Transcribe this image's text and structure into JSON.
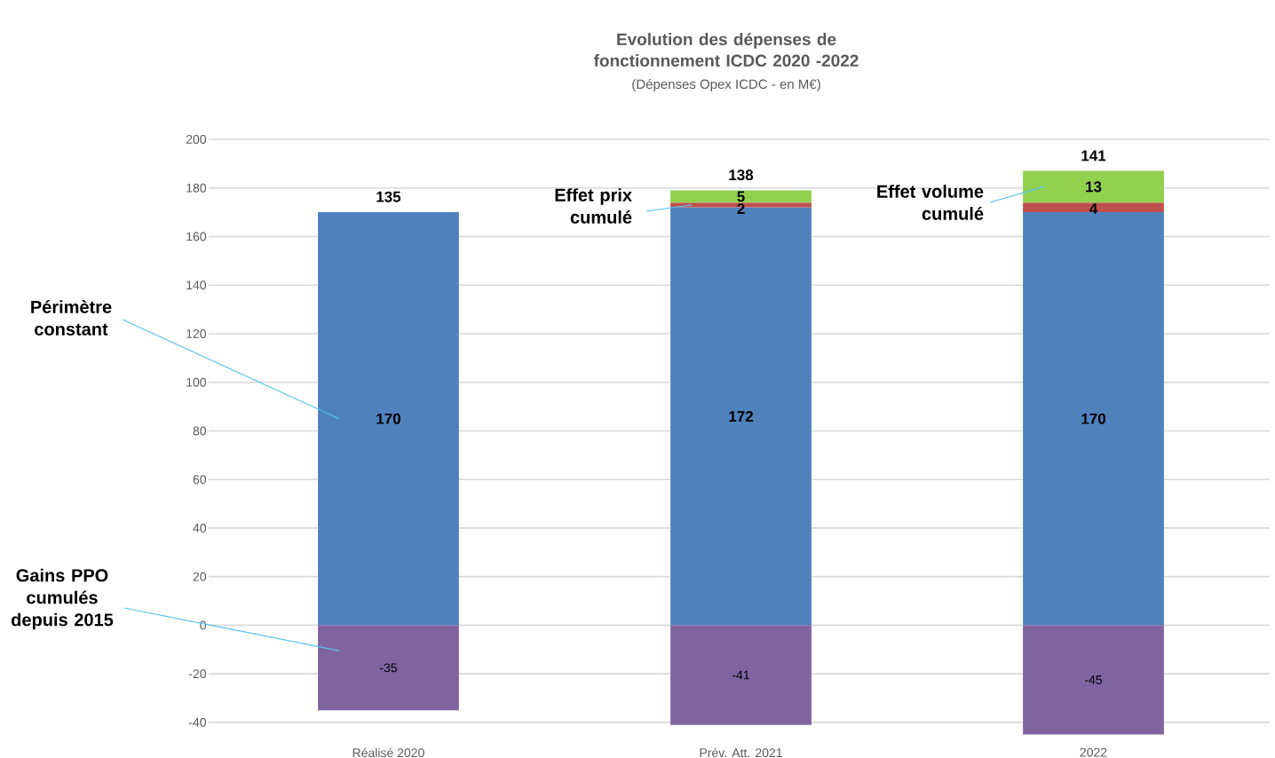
{
  "chart_data": {
    "type": "bar",
    "title": "Evolution des dépenses de fonctionnement ICDC 2020 -2022",
    "subtitle": "(Dépenses Opex ICDC - en M€)",
    "categories": [
      "Réalisé 2020",
      "Prév. Att. 2021",
      "2022"
    ],
    "stacked": true,
    "series": [
      {
        "name": "Périmètre constant",
        "color": "#4f81bd",
        "values": [
          170,
          172,
          170
        ],
        "value_labels": [
          "170",
          "172",
          "170"
        ]
      },
      {
        "name": "Effet prix cumulé",
        "color": "#c0504d",
        "values": [
          0,
          2,
          4
        ],
        "value_labels": [
          null,
          "2",
          "4"
        ]
      },
      {
        "name": "Effet volume cumulé",
        "color": "#92d050",
        "values": [
          0,
          5,
          13
        ],
        "value_labels": [
          null,
          "5",
          "13"
        ]
      },
      {
        "name": "Gains PPO cumulés depuis 2015",
        "color": "#8064a2",
        "values": [
          -35,
          -41,
          -45
        ],
        "value_labels": [
          "-35",
          "-41",
          "-45"
        ]
      }
    ],
    "totals": [
      "135",
      "138",
      "141"
    ],
    "ylim": [
      -45,
      200
    ],
    "yticks": [
      -40,
      -20,
      0,
      20,
      40,
      60,
      80,
      100,
      120,
      140,
      160,
      180,
      200
    ],
    "grid": "y"
  }
}
